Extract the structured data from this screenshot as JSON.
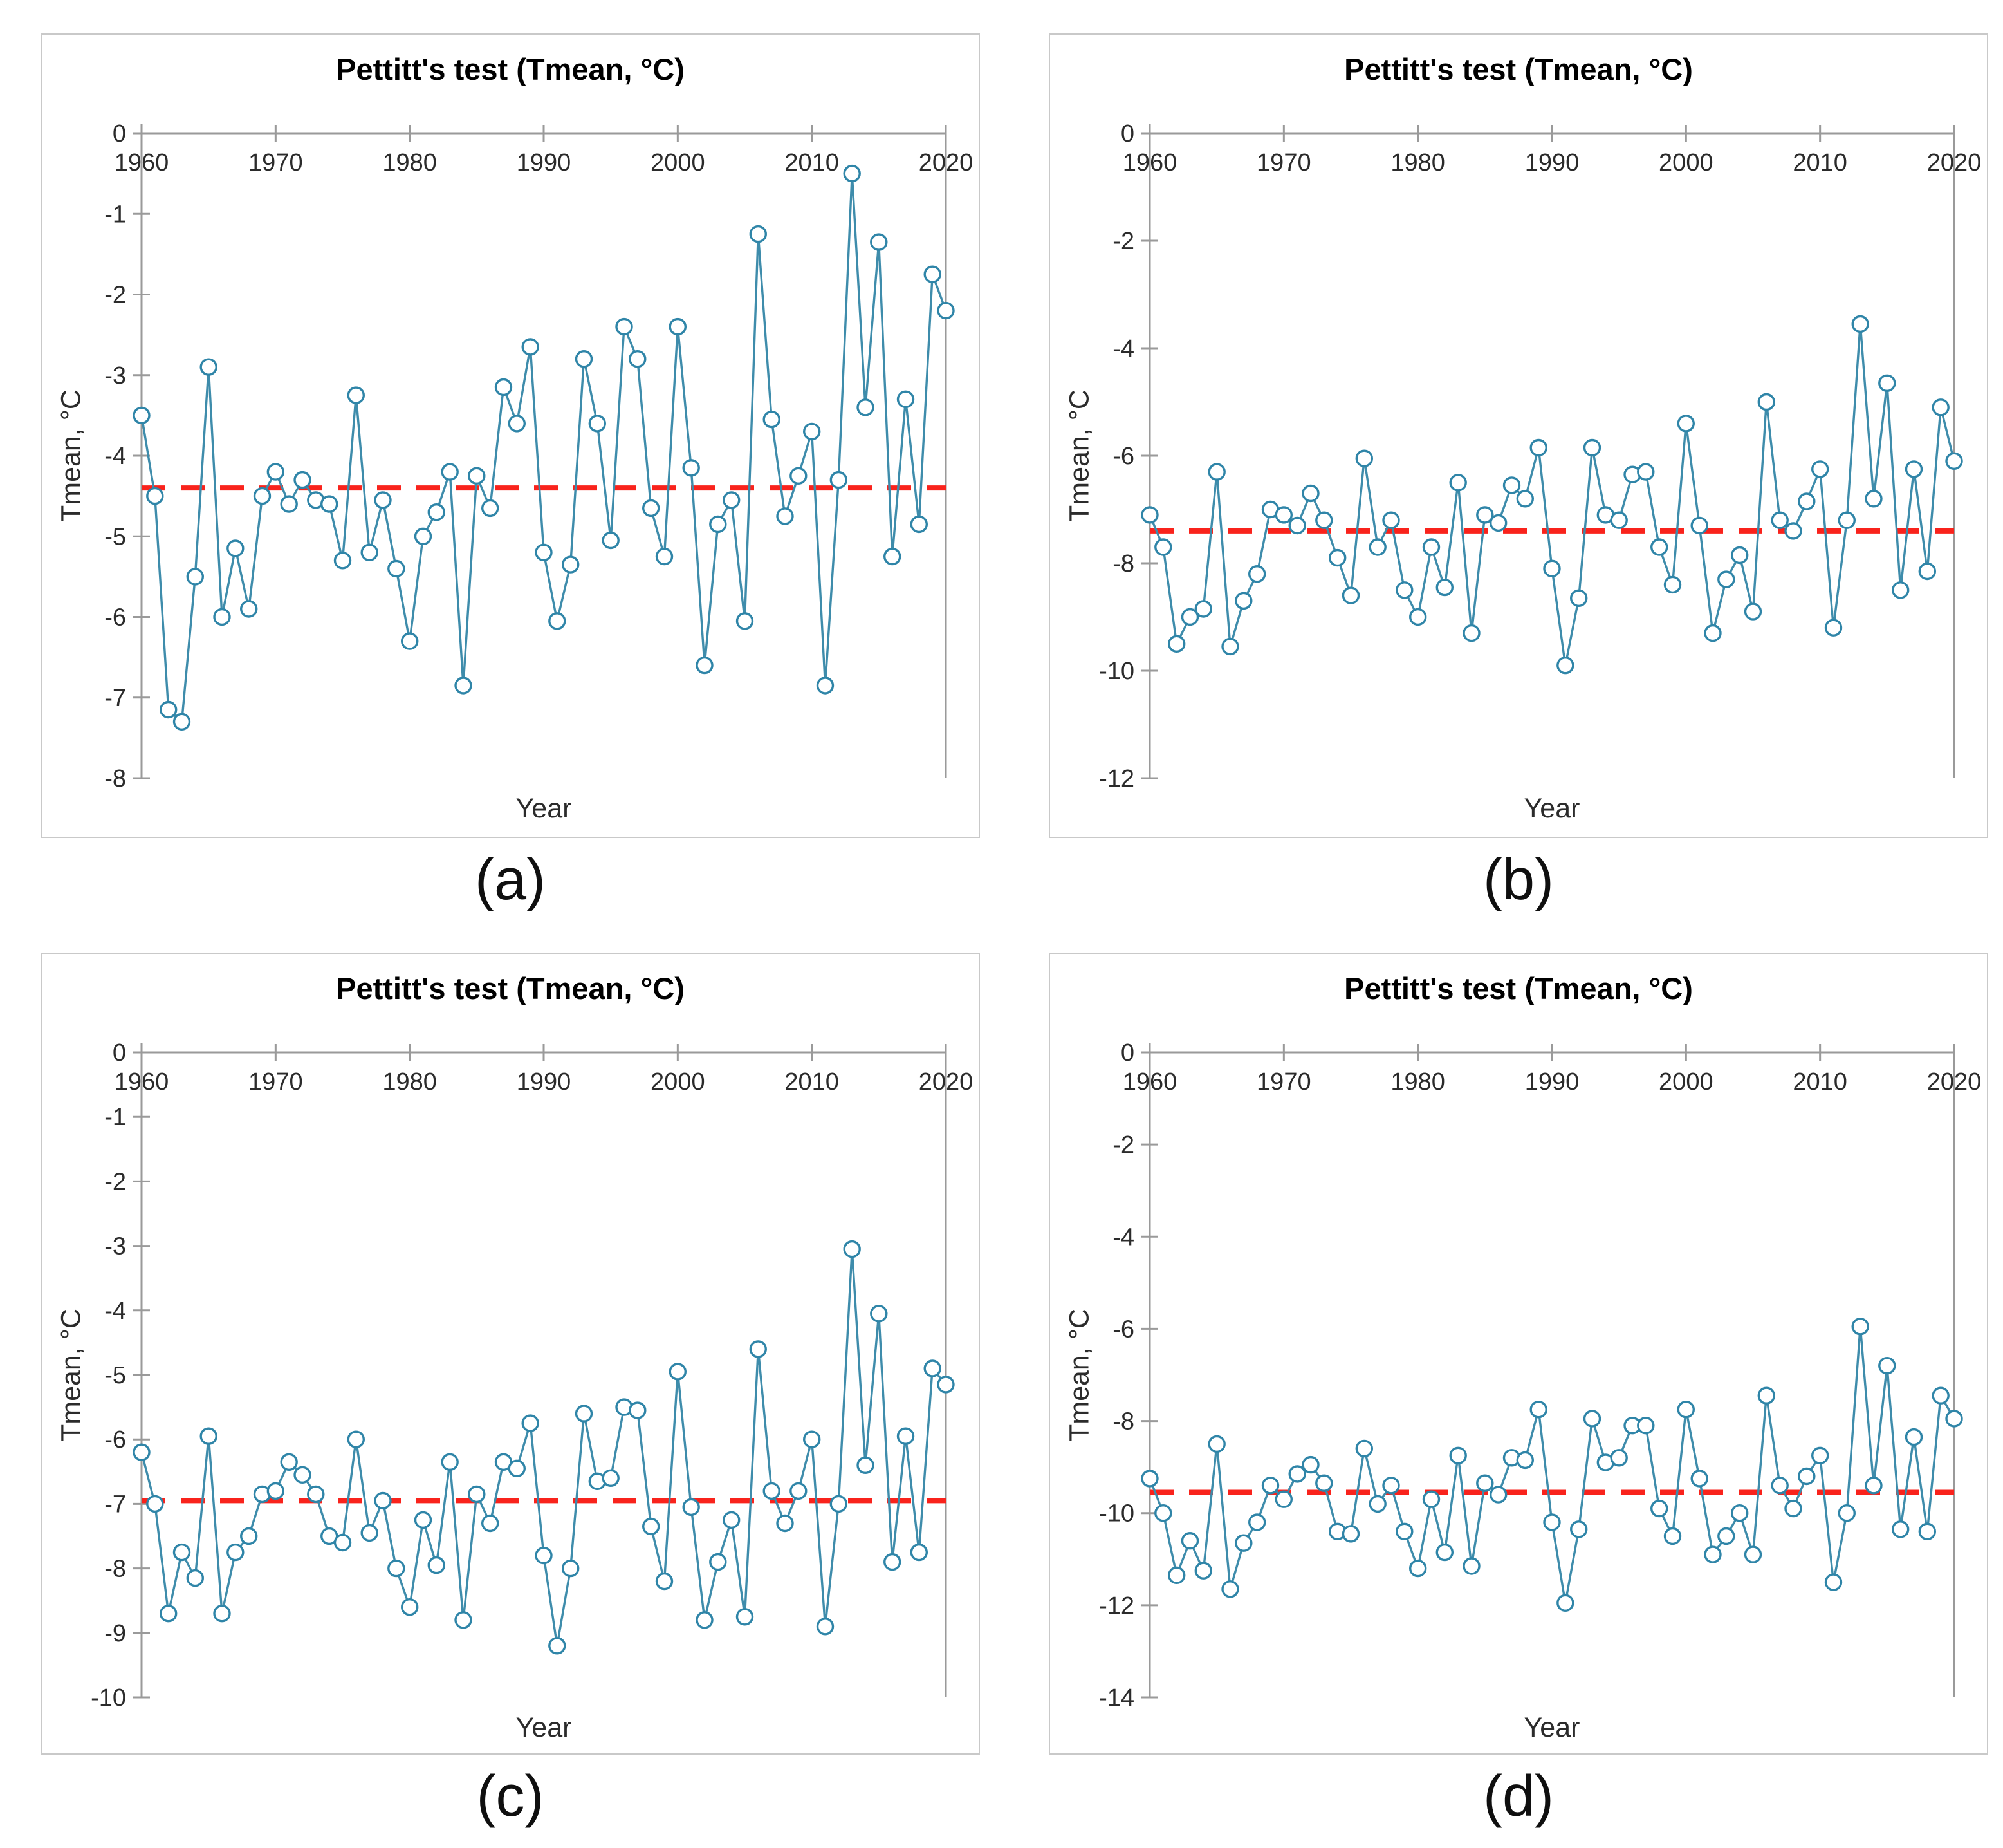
{
  "styles": {
    "background": "#ffffff",
    "panel_border": "#c9c9c9",
    "axis_color": "#9a9a9a",
    "tick_text_color": "#2b2b2b",
    "title_color": "#000000",
    "series_line_color": "#3e8cab",
    "marker_stroke_color": "#2f85a8",
    "marker_fill": "#ffffff",
    "mean_line_color": "#f9231c",
    "caption_color": "#0f0f0f"
  },
  "chart_data": [
    {
      "type": "line",
      "panel_label": "(a)",
      "title": "Pettitt's test (Tmean, °C)",
      "xlabel": "Year",
      "ylabel": "Tmean,  °C",
      "x_start": 1960,
      "x_end": 2020,
      "xticks": [
        1960,
        1970,
        1980,
        1990,
        2000,
        2010,
        2020
      ],
      "yticks": [
        0,
        -1,
        -2,
        -3,
        -4,
        -5,
        -6,
        -7,
        -8
      ],
      "ylim": [
        -8,
        0
      ],
      "grid": false,
      "legend": "none",
      "mean_line": -4.4,
      "values": [
        -3.5,
        -4.5,
        -7.15,
        -7.3,
        -5.5,
        -2.9,
        -6.0,
        -5.15,
        -5.9,
        -4.5,
        -4.2,
        -4.6,
        -4.3,
        -4.55,
        -4.6,
        -5.3,
        -3.25,
        -5.2,
        -4.55,
        -5.4,
        -6.3,
        -5.0,
        -4.7,
        -4.2,
        -6.85,
        -4.25,
        -4.65,
        -3.15,
        -3.6,
        -2.65,
        -5.2,
        -6.05,
        -5.35,
        -2.8,
        -3.6,
        -5.05,
        -2.4,
        -2.8,
        -4.65,
        -5.25,
        -2.4,
        -4.15,
        -6.6,
        -4.85,
        -4.55,
        -6.05,
        -1.25,
        -3.55,
        -4.75,
        -4.25,
        -3.7,
        -6.85,
        -4.3,
        -0.5,
        -3.4,
        -1.35,
        -5.25,
        -3.3,
        -4.85,
        -1.75,
        -2.2
      ]
    },
    {
      "type": "line",
      "panel_label": "(b)",
      "title": "Pettitt's test (Tmean, °C)",
      "xlabel": "Year",
      "ylabel": "Tmean,  °C",
      "x_start": 1960,
      "x_end": 2020,
      "xticks": [
        1960,
        1970,
        1980,
        1990,
        2000,
        2010,
        2020
      ],
      "yticks": [
        0,
        -2,
        -4,
        -6,
        -8,
        -10,
        -12
      ],
      "ylim": [
        -12,
        0
      ],
      "grid": false,
      "legend": "none",
      "mean_line": -7.4,
      "values": [
        -7.1,
        -7.7,
        -9.5,
        -9.0,
        -8.85,
        -6.3,
        -9.55,
        -8.7,
        -8.2,
        -7.0,
        -7.1,
        -7.3,
        -6.7,
        -7.2,
        -7.9,
        -8.6,
        -6.05,
        -7.7,
        -7.2,
        -8.5,
        -9.0,
        -7.7,
        -8.45,
        -6.5,
        -9.3,
        -7.1,
        -7.25,
        -6.55,
        -6.8,
        -5.85,
        -8.1,
        -9.9,
        -8.65,
        -5.85,
        -7.1,
        -7.2,
        -6.35,
        -6.3,
        -7.7,
        -8.4,
        -5.4,
        -7.3,
        -9.3,
        -8.3,
        -7.85,
        -8.9,
        -5.0,
        -7.2,
        -7.4,
        -6.85,
        -6.25,
        -9.2,
        -7.2,
        -3.55,
        -6.8,
        -4.65,
        -8.5,
        -6.25,
        -8.15,
        -5.1,
        -6.1
      ]
    },
    {
      "type": "line",
      "panel_label": "(c)",
      "title": "Pettitt's test (Tmean, °C)",
      "xlabel": "Year",
      "ylabel": "Tmean,  °C",
      "x_start": 1960,
      "x_end": 2020,
      "xticks": [
        1960,
        1970,
        1980,
        1990,
        2000,
        2010,
        2020
      ],
      "yticks": [
        0,
        -1,
        -2,
        -3,
        -4,
        -5,
        -6,
        -7,
        -8,
        -9,
        -10
      ],
      "ylim": [
        -10,
        0
      ],
      "grid": false,
      "legend": "none",
      "mean_line": -6.95,
      "values": [
        -6.2,
        -7.0,
        -8.7,
        -7.75,
        -8.15,
        -5.95,
        -8.7,
        -7.75,
        -7.5,
        -6.85,
        -6.8,
        -6.35,
        -6.55,
        -6.85,
        -7.5,
        -7.6,
        -6.0,
        -7.45,
        -6.95,
        -8.0,
        -8.6,
        -7.25,
        -7.95,
        -6.35,
        -8.8,
        -6.85,
        -7.3,
        -6.35,
        -6.45,
        -5.75,
        -7.8,
        -9.2,
        -8.0,
        -5.6,
        -6.65,
        -6.6,
        -5.5,
        -5.55,
        -7.35,
        -8.2,
        -4.95,
        -7.05,
        -8.8,
        -7.9,
        -7.25,
        -8.75,
        -4.6,
        -6.8,
        -7.3,
        -6.8,
        -6.0,
        -8.9,
        -7.0,
        -3.05,
        -6.4,
        -4.05,
        -7.9,
        -5.95,
        -7.75,
        -4.9,
        -5.15
      ]
    },
    {
      "type": "line",
      "panel_label": "(d)",
      "title": "Pettitt's test (Tmean, °C)",
      "xlabel": "Year",
      "ylabel": "Tmean,  °C",
      "x_start": 1960,
      "x_end": 2020,
      "xticks": [
        1960,
        1970,
        1980,
        1990,
        2000,
        2010,
        2020
      ],
      "yticks": [
        0,
        -2,
        -4,
        -6,
        -8,
        -10,
        -12,
        -14
      ],
      "ylim": [
        -14,
        0
      ],
      "grid": false,
      "legend": "none",
      "mean_line": -9.55,
      "values": [
        -9.25,
        -10.0,
        -11.35,
        -10.6,
        -11.25,
        -8.5,
        -11.65,
        -10.65,
        -10.2,
        -9.4,
        -9.7,
        -9.15,
        -8.95,
        -9.35,
        -10.4,
        -10.45,
        -8.6,
        -9.8,
        -9.4,
        -10.4,
        -11.2,
        -9.7,
        -10.85,
        -8.75,
        -11.15,
        -9.35,
        -9.6,
        -8.8,
        -8.85,
        -7.75,
        -10.2,
        -11.95,
        -10.35,
        -7.95,
        -8.9,
        -8.8,
        -8.1,
        -8.1,
        -9.9,
        -10.5,
        -7.75,
        -9.25,
        -10.9,
        -10.5,
        -10.0,
        -10.9,
        -7.45,
        -9.4,
        -9.9,
        -9.2,
        -8.75,
        -11.5,
        -10.0,
        -5.95,
        -9.4,
        -6.8,
        -10.35,
        -8.35,
        -10.4,
        -7.45,
        -7.95
      ]
    }
  ]
}
